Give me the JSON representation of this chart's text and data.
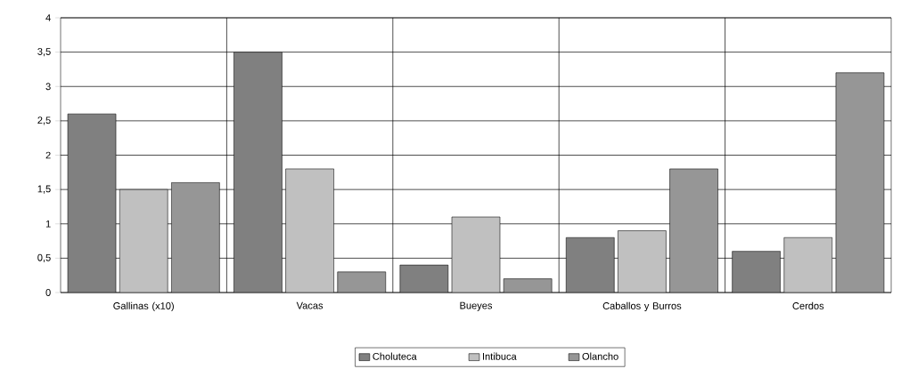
{
  "chart_data": {
    "type": "bar",
    "categories": [
      "Gallinas (x10)",
      "Vacas",
      "Bueyes",
      "Caballos y Burros",
      "Cerdos"
    ],
    "series": [
      {
        "name": "Choluteca",
        "color": "#808080",
        "values": [
          2.6,
          3.5,
          0.4,
          0.8,
          0.6
        ]
      },
      {
        "name": "Intibuca",
        "color": "#c0c0c0",
        "values": [
          1.5,
          1.8,
          1.1,
          0.9,
          0.8
        ]
      },
      {
        "name": "Olancho",
        "color": "#969696",
        "values": [
          1.6,
          0.3,
          0.2,
          1.8,
          3.2
        ]
      }
    ],
    "ylim": [
      0,
      4
    ],
    "yticks": [
      0,
      {
        "value": 0.5,
        "label": "0,5"
      },
      1,
      {
        "value": 1.5,
        "label": "1,5"
      },
      2,
      {
        "value": 2.5,
        "label": "2,5"
      },
      3,
      {
        "value": 3.5,
        "label": "3,5"
      },
      4
    ],
    "grid": true,
    "legend": "bottom"
  }
}
